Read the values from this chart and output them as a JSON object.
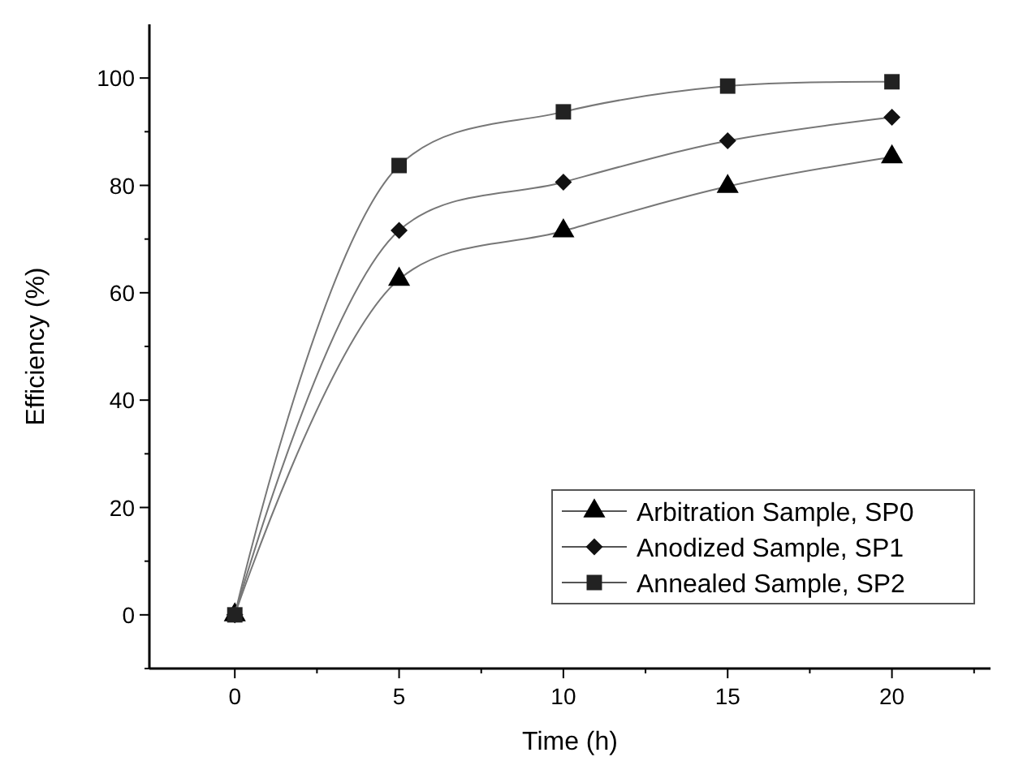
{
  "chart_data": {
    "type": "line",
    "xlabel": "Time (h)",
    "ylabel": "Efficiency (%)",
    "x": [
      0,
      5,
      10,
      15,
      20
    ],
    "xlim": [
      -2.6,
      23
    ],
    "ylim": [
      -10,
      110
    ],
    "xticks": [
      0,
      {
        "value": 2.5,
        "label": null
      },
      5,
      {
        "value": 7.5,
        "label": null
      },
      10,
      {
        "value": 12.5,
        "label": null
      },
      15,
      {
        "value": 17.5,
        "label": null
      },
      20,
      {
        "value": 22.5,
        "label": null
      }
    ],
    "yticks": [
      {
        "value": -10,
        "label": null
      },
      0,
      {
        "value": 10,
        "label": null
      },
      20,
      {
        "value": 30,
        "label": null
      },
      40,
      {
        "value": 50,
        "label": null
      },
      60,
      {
        "value": 70,
        "label": null
      },
      80,
      {
        "value": 90,
        "label": null
      },
      100
    ],
    "series": [
      {
        "name": "Arbitration Sample, SP0",
        "color": "#000000",
        "marker": "triangle",
        "values": [
          0,
          62.5,
          71.5,
          79.8,
          85.3
        ]
      },
      {
        "name": "Anodized Sample, SP1",
        "color": "#111111",
        "marker": "diamond",
        "values": [
          0,
          71.6,
          80.6,
          88.3,
          92.7
        ]
      },
      {
        "name": "Annealed Sample, SP2",
        "color": "#222222",
        "marker": "square",
        "values": [
          0,
          83.7,
          93.7,
          98.5,
          99.3
        ]
      }
    ],
    "line_style": "solid",
    "grid": false,
    "legend": "bottom right"
  }
}
